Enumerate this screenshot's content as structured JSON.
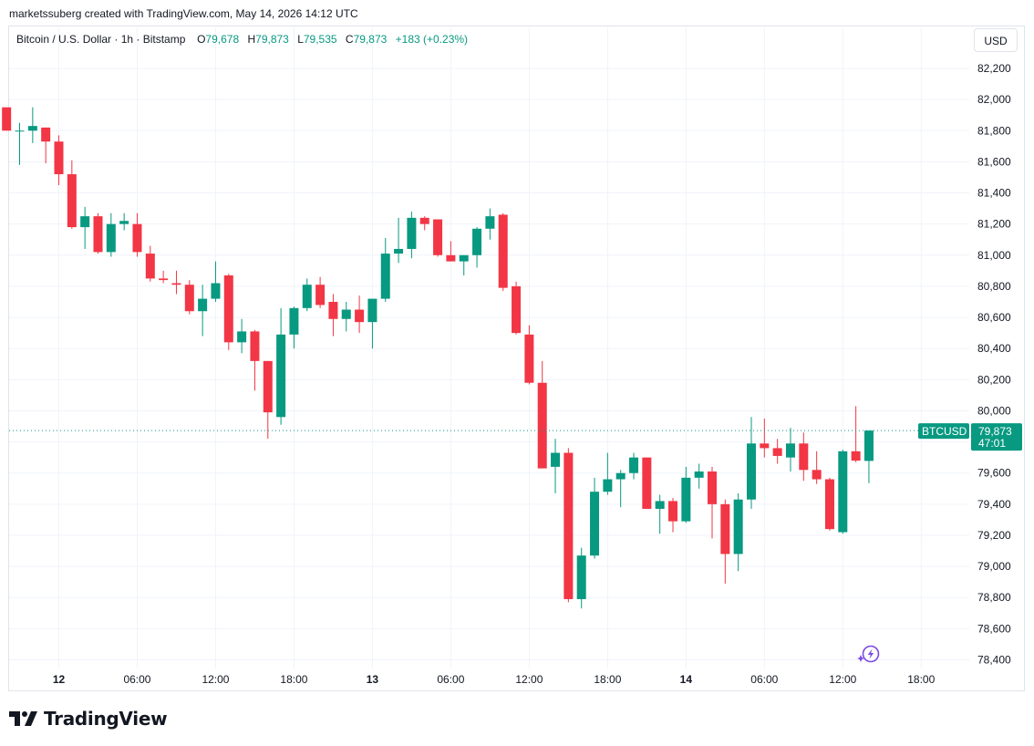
{
  "caption": "marketssuberg created with TradingView.com, May 14, 2026 14:12 UTC",
  "legend": {
    "symbol": "Bitcoin / U.S. Dollar · 1h · Bitstamp",
    "open_label": "O",
    "open": "79,678",
    "high_label": "H",
    "high": "79,873",
    "low_label": "L",
    "low": "79,535",
    "close_label": "C",
    "close": "79,873",
    "change": "+183 (+0.23%)"
  },
  "currency_button": "USD",
  "price_tag": {
    "ticker": "BTCUSD",
    "price": "79,873",
    "countdown": "47:01"
  },
  "brand": {
    "name": "TradingView"
  },
  "icons": {
    "logo": "tradingview-logo-icon",
    "assistant": "sparkle-lightning-icon"
  },
  "colors": {
    "up": "#089981",
    "down": "#f23645",
    "grid": "#f0f3fa",
    "text": "#131722",
    "assistant": "#7b4ae2"
  },
  "chart_data": {
    "type": "candlestick",
    "interval": "1h",
    "y_axis_labels": [
      "82,200",
      "82,000",
      "81,800",
      "81,600",
      "81,400",
      "81,200",
      "81,000",
      "80,800",
      "80,600",
      "80,400",
      "80,200",
      "80,000",
      "79,800",
      "79,600",
      "79,400",
      "79,200",
      "79,000",
      "78,800",
      "78,600",
      "78,400"
    ],
    "y_ticks": [
      82200,
      82000,
      81800,
      81600,
      81400,
      81200,
      81000,
      80800,
      80600,
      80400,
      80200,
      80000,
      79800,
      79600,
      79400,
      79200,
      79000,
      78800,
      78600,
      78400
    ],
    "x_axis_labels": [
      {
        "label": "12",
        "bold": true,
        "hour": 0
      },
      {
        "label": "06:00",
        "bold": false,
        "hour": 6
      },
      {
        "label": "12:00",
        "bold": false,
        "hour": 12
      },
      {
        "label": "18:00",
        "bold": false,
        "hour": 18
      },
      {
        "label": "13",
        "bold": true,
        "hour": 24
      },
      {
        "label": "06:00",
        "bold": false,
        "hour": 30
      },
      {
        "label": "12:00",
        "bold": false,
        "hour": 36
      },
      {
        "label": "18:00",
        "bold": false,
        "hour": 42
      },
      {
        "label": "14",
        "bold": true,
        "hour": 48
      },
      {
        "label": "06:00",
        "bold": false,
        "hour": 54
      },
      {
        "label": "12:00",
        "bold": false,
        "hour": 60
      },
      {
        "label": "18:00",
        "bold": false,
        "hour": 66
      }
    ],
    "last_price": 79873,
    "candles": [
      [
        -4,
        81950,
        81950,
        81800,
        81800
      ],
      [
        -3,
        81800,
        81850,
        81580,
        81800
      ],
      [
        -2,
        81800,
        81950,
        81720,
        81830
      ],
      [
        -1,
        81820,
        81820,
        81590,
        81730
      ],
      [
        0,
        81730,
        81770,
        81450,
        81520
      ],
      [
        1,
        81520,
        81610,
        81170,
        81180
      ],
      [
        2,
        81180,
        81310,
        81040,
        81250
      ],
      [
        3,
        81250,
        81270,
        81010,
        81020
      ],
      [
        4,
        81020,
        81270,
        80990,
        81200
      ],
      [
        5,
        81200,
        81270,
        81160,
        81220
      ],
      [
        6,
        81200,
        81270,
        80990,
        81020
      ],
      [
        7,
        81010,
        81060,
        80830,
        80850
      ],
      [
        8,
        80850,
        80900,
        80820,
        80840
      ],
      [
        9,
        80820,
        80900,
        80750,
        80810
      ],
      [
        10,
        80810,
        80840,
        80620,
        80640
      ],
      [
        11,
        80640,
        80810,
        80480,
        80720
      ],
      [
        12,
        80720,
        80960,
        80700,
        80820
      ],
      [
        13,
        80870,
        80880,
        80390,
        80440
      ],
      [
        14,
        80440,
        80590,
        80370,
        80510
      ],
      [
        15,
        80510,
        80520,
        80130,
        80320
      ],
      [
        16,
        80320,
        80320,
        79820,
        79990
      ],
      [
        17,
        79960,
        80660,
        79910,
        80490
      ],
      [
        18,
        80490,
        80670,
        80400,
        80660
      ],
      [
        19,
        80660,
        80850,
        80640,
        80810
      ],
      [
        20,
        80810,
        80860,
        80660,
        80680
      ],
      [
        21,
        80700,
        80750,
        80480,
        80590
      ],
      [
        22,
        80590,
        80700,
        80510,
        80650
      ],
      [
        23,
        80650,
        80740,
        80500,
        80570
      ],
      [
        24,
        80570,
        80720,
        80400,
        80720
      ],
      [
        25,
        80720,
        81110,
        80700,
        81010
      ],
      [
        26,
        81010,
        81240,
        80950,
        81040
      ],
      [
        27,
        81040,
        81280,
        80980,
        81240
      ],
      [
        28,
        81240,
        81250,
        81160,
        81200
      ],
      [
        29,
        81230,
        81230,
        80990,
        81000
      ],
      [
        30,
        81000,
        81090,
        80960,
        80960
      ],
      [
        31,
        80960,
        81000,
        80870,
        81000
      ],
      [
        32,
        81000,
        81180,
        80920,
        81170
      ],
      [
        33,
        81170,
        81300,
        81100,
        81250
      ],
      [
        34,
        81260,
        81270,
        80770,
        80790
      ],
      [
        35,
        80800,
        80830,
        80490,
        80500
      ],
      [
        36,
        80490,
        80550,
        80170,
        80180
      ],
      [
        37,
        80180,
        80320,
        79630,
        79630
      ],
      [
        38,
        79640,
        79820,
        79470,
        79730
      ],
      [
        39,
        79730,
        79760,
        78770,
        78790
      ],
      [
        40,
        78790,
        79120,
        78730,
        79070
      ],
      [
        41,
        79070,
        79570,
        79050,
        79480
      ],
      [
        42,
        79480,
        79730,
        79460,
        79560
      ],
      [
        43,
        79560,
        79620,
        79380,
        79600
      ],
      [
        44,
        79600,
        79730,
        79560,
        79700
      ],
      [
        45,
        79700,
        79700,
        79380,
        79370
      ],
      [
        46,
        79370,
        79460,
        79210,
        79420
      ],
      [
        47,
        79420,
        79440,
        79220,
        79290
      ],
      [
        48,
        79290,
        79640,
        79280,
        79570
      ],
      [
        49,
        79570,
        79660,
        79500,
        79610
      ],
      [
        50,
        79610,
        79640,
        79180,
        79400
      ],
      [
        51,
        79400,
        79430,
        78890,
        79080
      ],
      [
        52,
        79080,
        79470,
        78970,
        79430
      ],
      [
        53,
        79430,
        79960,
        79370,
        79790
      ],
      [
        54,
        79790,
        79950,
        79700,
        79760
      ],
      [
        55,
        79760,
        79820,
        79660,
        79710
      ],
      [
        56,
        79700,
        79890,
        79610,
        79790
      ],
      [
        57,
        79790,
        79860,
        79550,
        79620
      ],
      [
        58,
        79620,
        79740,
        79530,
        79560
      ],
      [
        59,
        79560,
        79570,
        79230,
        79240
      ],
      [
        60,
        79220,
        79750,
        79210,
        79740
      ],
      [
        61,
        79740,
        80030,
        79670,
        79680
      ],
      [
        62,
        79678,
        79873,
        79535,
        79873
      ]
    ]
  }
}
